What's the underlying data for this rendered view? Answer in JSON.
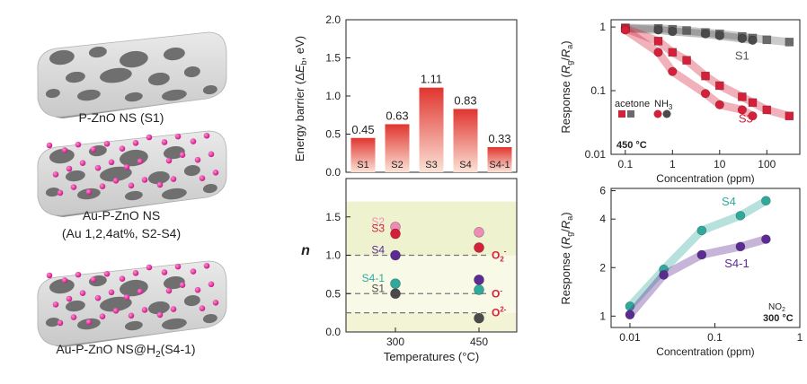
{
  "left_panel": {
    "captions": [
      "P-ZnO NS (S1)",
      "Au-P-ZnO NS",
      "(Au 1,2,4at%, S2-S4)"
    ],
    "caption_s41_prefix": "Au-P-ZnO NS@H",
    "caption_s41_sub": "2",
    "caption_s41_suffix": "(S4-1)"
  },
  "chart_data": [
    {
      "type": "bar",
      "categories": [
        "S1",
        "S2",
        "S3",
        "S4",
        "S4-1"
      ],
      "values": [
        0.45,
        0.63,
        1.11,
        0.83,
        0.33
      ],
      "value_labels": [
        "0.45",
        "0.63",
        "1.11",
        "0.83",
        "0.33"
      ],
      "title": "",
      "ylabel_parts": [
        "Energy barrier (Δ",
        "E",
        "b",
        ", eV)"
      ],
      "ylim": [
        0,
        2.0
      ],
      "yticks": [
        "0.0",
        "0.5",
        "1.0",
        "1.5",
        "2.0"
      ],
      "bar_gradient": [
        "#e0352f",
        "#fbe2d6"
      ]
    },
    {
      "type": "scatter",
      "xlabel": "Temperatures (°C)",
      "ylabel": "n",
      "categories": [
        "300",
        "450"
      ],
      "ylim": [
        0,
        2.0
      ],
      "yticks": [
        "0.0",
        "0.5",
        "1.0",
        "1.5"
      ],
      "series": [
        {
          "name": "S2",
          "values": [
            1.37,
            1.3
          ],
          "color": "#ee8cb8"
        },
        {
          "name": "S3",
          "values": [
            1.28,
            1.1
          ],
          "color": "#d5203a"
        },
        {
          "name": "S4",
          "values": [
            1.0,
            0.68
          ],
          "color": "#5b2a93"
        },
        {
          "name": "S4-1",
          "values": [
            0.63,
            0.55
          ],
          "color": "#2fa99c"
        },
        {
          "name": "S1",
          "values": [
            0.5,
            0.18
          ],
          "color": "#4a4a4a"
        }
      ],
      "reference_lines": [
        {
          "y": 1.0,
          "label": "O2-",
          "label_main": "O",
          "label_sub": "2",
          "label_sup": "-"
        },
        {
          "y": 0.5,
          "label": "O-",
          "label_main": "O",
          "label_sub": "",
          "label_sup": "-"
        },
        {
          "y": 0.25,
          "label": "O2-",
          "label_main": "O",
          "label_sub": "",
          "label_sup": "2-"
        }
      ],
      "bands": [
        "#f3f4d6",
        "#f9f9e8",
        "#eef2cf"
      ]
    },
    {
      "type": "line",
      "ylabel": "Response (Rg/Ra)",
      "xlabel": "Concentration (ppm)",
      "x_scale": "log",
      "y_scale": "log",
      "xlim": [
        0.05,
        500
      ],
      "ylim": [
        0.01,
        1.3
      ],
      "xticks": [
        "0.1",
        "1",
        "10",
        "100"
      ],
      "yticks": [
        "0.01",
        "0.1",
        "1"
      ],
      "legend": {
        "acetone": "acetone",
        "nh3_main": "NH",
        "nh3_sub": "3"
      },
      "annotation": "450 °C",
      "series": [
        {
          "name": "S1 acetone",
          "marker": "square",
          "color": "#6a6a6a",
          "x": [
            0.1,
            0.5,
            1,
            2,
            5,
            10,
            30,
            50,
            100,
            300
          ],
          "y": [
            0.97,
            0.95,
            0.92,
            0.88,
            0.82,
            0.78,
            0.71,
            0.67,
            0.63,
            0.58
          ]
        },
        {
          "name": "S1 NH3",
          "marker": "circle",
          "color": "#4a4a4a",
          "x": [
            0.1,
            0.5,
            1,
            5,
            10,
            30,
            50
          ],
          "y": [
            0.95,
            0.9,
            0.85,
            0.78,
            0.73,
            0.66,
            0.62
          ]
        },
        {
          "name": "S3 acetone",
          "marker": "square",
          "color": "#d5203a",
          "x": [
            0.1,
            0.5,
            1,
            2,
            5,
            10,
            30,
            50,
            100,
            300
          ],
          "y": [
            0.95,
            0.6,
            0.4,
            0.3,
            0.17,
            0.12,
            0.08,
            0.065,
            0.05,
            0.04
          ]
        },
        {
          "name": "S3 NH3",
          "marker": "circle",
          "color": "#d5203a",
          "x": [
            0.1,
            0.5,
            1,
            5,
            10,
            30,
            50
          ],
          "y": [
            0.9,
            0.4,
            0.2,
            0.09,
            0.06,
            0.05,
            0.04
          ]
        }
      ],
      "labels": [
        "S1",
        "S3"
      ]
    },
    {
      "type": "line",
      "ylabel": "Response (Rg/Ra)",
      "xlabel": "Concentration (ppm)",
      "x_scale": "log",
      "y_scale": "log",
      "xlim": [
        0.006,
        1
      ],
      "ylim": [
        0.85,
        6.2
      ],
      "xticks": [
        "0.01",
        "0.1",
        "1"
      ],
      "yticks": [
        "1",
        "2",
        "4",
        "6"
      ],
      "annotation_gas_main": "NO",
      "annotation_gas_sub": "2",
      "annotation_temp": "300 °C",
      "series": [
        {
          "name": "S4",
          "color": "#2fa99c",
          "x": [
            0.01,
            0.025,
            0.07,
            0.2,
            0.4
          ],
          "y": [
            1.15,
            1.95,
            3.4,
            4.2,
            5.2
          ]
        },
        {
          "name": "S4-1",
          "color": "#5b2a93",
          "x": [
            0.01,
            0.025,
            0.07,
            0.2,
            0.4
          ],
          "y": [
            1.02,
            1.8,
            2.4,
            2.7,
            3.0
          ]
        }
      ]
    }
  ]
}
